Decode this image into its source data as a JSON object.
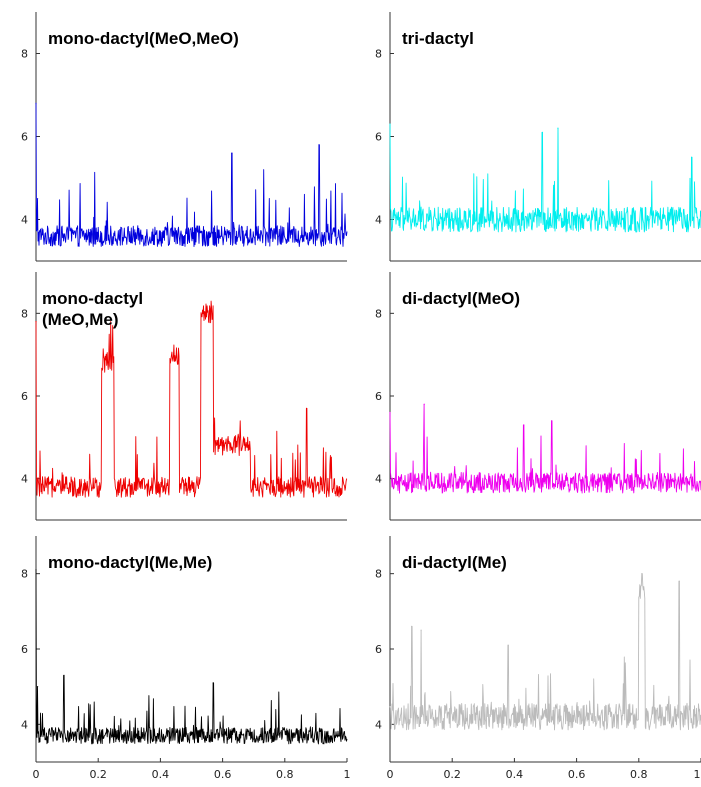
{
  "chart_data": [
    {
      "type": "line",
      "title": "mono-dactyl(MeO,MeO)",
      "color": "#0000dd",
      "xlim": [
        0,
        1
      ],
      "ylim": [
        3,
        9
      ],
      "yticks": [
        4,
        6,
        8
      ],
      "xticks": [],
      "show_x_ticklabels": false,
      "series": [
        {
          "baseline": 3.6,
          "noise": 0.25,
          "spike_rate": 0.06,
          "spike_amp": 1.4,
          "features": [
            {
              "x": 0.0,
              "y": 6.8
            },
            {
              "x": 0.005,
              "y": 4.5
            },
            {
              "x": 0.63,
              "y": 5.6
            },
            {
              "x": 0.91,
              "y": 5.8
            }
          ]
        }
      ]
    },
    {
      "type": "line",
      "title": "tri-dactyl",
      "color": "#00eeee",
      "xlim": [
        0,
        1
      ],
      "ylim": [
        3,
        9
      ],
      "yticks": [
        4,
        6,
        8
      ],
      "xticks": [],
      "show_x_ticklabels": false,
      "series": [
        {
          "baseline": 4.0,
          "noise": 0.3,
          "spike_rate": 0.05,
          "spike_amp": 1.2,
          "features": [
            {
              "x": 0.0,
              "y": 6.3
            },
            {
              "x": 0.49,
              "y": 6.1
            },
            {
              "x": 0.54,
              "y": 6.2
            },
            {
              "x": 0.97,
              "y": 5.5
            }
          ]
        }
      ]
    },
    {
      "type": "line",
      "title": "mono-dactyl\n(MeO,Me)",
      "color": "#ee0000",
      "xlim": [
        0,
        1
      ],
      "ylim": [
        3,
        9
      ],
      "yticks": [
        4,
        6,
        8
      ],
      "xticks": [],
      "show_x_ticklabels": false,
      "series": [
        {
          "baseline": 3.8,
          "noise": 0.25,
          "spike_rate": 0.06,
          "spike_amp": 1.2,
          "bursts": [
            {
              "x0": 0.21,
              "x1": 0.25,
              "level": 6.8
            },
            {
              "x0": 0.43,
              "x1": 0.46,
              "level": 7.0
            },
            {
              "x0": 0.53,
              "x1": 0.57,
              "level": 8.0
            },
            {
              "x0": 0.57,
              "x1": 0.69,
              "level": 4.8
            }
          ],
          "features": [
            {
              "x": 0.0,
              "y": 7.8
            },
            {
              "x": 0.87,
              "y": 5.7
            }
          ]
        }
      ]
    },
    {
      "type": "line",
      "title": "di-dactyl(MeO)",
      "color": "#ee00ee",
      "xlim": [
        0,
        1
      ],
      "ylim": [
        3,
        9
      ],
      "yticks": [
        4,
        6,
        8
      ],
      "xticks": [],
      "show_x_ticklabels": false,
      "series": [
        {
          "baseline": 3.9,
          "noise": 0.25,
          "spike_rate": 0.05,
          "spike_amp": 1.0,
          "features": [
            {
              "x": 0.0,
              "y": 5.6
            },
            {
              "x": 0.11,
              "y": 5.8
            },
            {
              "x": 0.43,
              "y": 5.3
            },
            {
              "x": 0.52,
              "y": 5.4
            }
          ]
        }
      ]
    },
    {
      "type": "line",
      "title": "mono-dactyl(Me,Me)",
      "color": "#000000",
      "xlim": [
        0,
        1
      ],
      "ylim": [
        3,
        9
      ],
      "yticks": [
        4,
        6,
        8
      ],
      "xticks": [
        0,
        0.2,
        0.4,
        0.6,
        0.8,
        1
      ],
      "xticklabels": [
        "0",
        "0.2",
        "0.4",
        "0.6",
        "0.8",
        "1"
      ],
      "show_x_ticklabels": true,
      "series": [
        {
          "baseline": 3.7,
          "noise": 0.22,
          "spike_rate": 0.05,
          "spike_amp": 1.1,
          "features": [
            {
              "x": 0.0,
              "y": 8.1
            },
            {
              "x": 0.005,
              "y": 5.0
            },
            {
              "x": 0.09,
              "y": 5.3
            },
            {
              "x": 0.57,
              "y": 5.1
            }
          ]
        }
      ]
    },
    {
      "type": "line",
      "title": "di-dactyl(Me)",
      "color": "#bbbbbb",
      "xlim": [
        0,
        1
      ],
      "ylim": [
        3,
        9
      ],
      "yticks": [
        4,
        6,
        8
      ],
      "xticks": [
        0,
        0.2,
        0.4,
        0.6,
        0.8,
        1
      ],
      "xticklabels": [
        "0",
        "0.2",
        "0.4",
        "0.6",
        "0.8",
        "1"
      ],
      "show_x_ticklabels": true,
      "series": [
        {
          "baseline": 4.2,
          "noise": 0.35,
          "spike_rate": 0.06,
          "spike_amp": 1.3,
          "bursts": [
            {
              "x0": 0.8,
              "x1": 0.82,
              "level": 7.4
            }
          ],
          "features": [
            {
              "x": 0.07,
              "y": 6.6
            },
            {
              "x": 0.1,
              "y": 6.5
            },
            {
              "x": 0.38,
              "y": 6.1
            },
            {
              "x": 0.81,
              "y": 8.0
            },
            {
              "x": 0.93,
              "y": 7.8
            }
          ]
        }
      ]
    }
  ]
}
